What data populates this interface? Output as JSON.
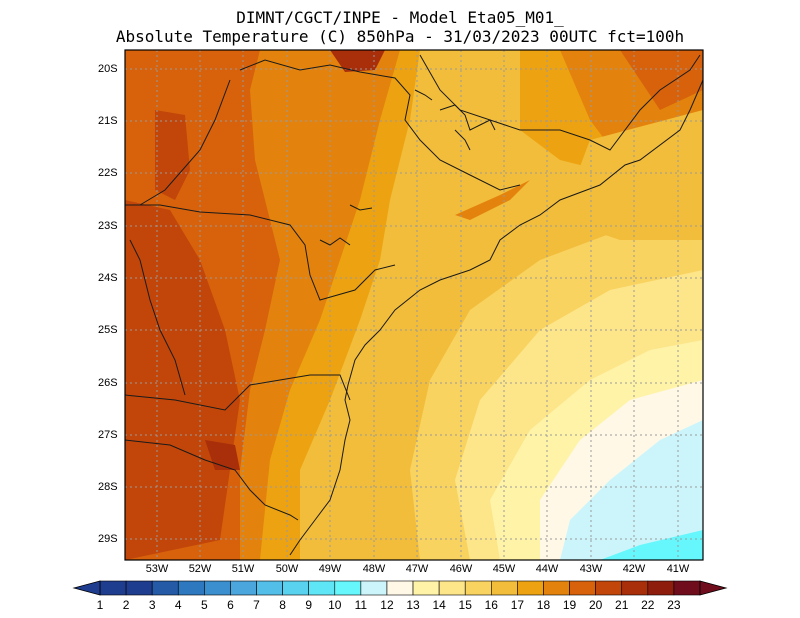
{
  "title": {
    "line1": "DIMNT/CGCT/INPE -  Model Eta05_M01_",
    "line2": "Absolute Temperature (C) 850hPa -  31/03/2023 00UTC fct=100h"
  },
  "map": {
    "latitude_labels": [
      "20S",
      "21S",
      "22S",
      "23S",
      "24S",
      "25S",
      "26S",
      "27S",
      "28S",
      "29S"
    ],
    "longitude_labels": [
      "53W",
      "52W",
      "51W",
      "50W",
      "49W",
      "48W",
      "47W",
      "46W",
      "45W",
      "44W",
      "43W",
      "42W",
      "41W"
    ],
    "extent": {
      "lon_min": -53.9,
      "lon_max": -40.6,
      "lat_min": -29.5,
      "lat_max": -19.8
    }
  },
  "colorbar": {
    "labels": [
      "1",
      "2",
      "3",
      "4",
      "5",
      "6",
      "7",
      "8",
      "9",
      "10",
      "11",
      "12",
      "13",
      "14",
      "15",
      "16",
      "17",
      "18",
      "19",
      "20",
      "21",
      "22",
      "23"
    ],
    "colors": [
      "#1f3d8f",
      "#1f3d8f",
      "#245aa6",
      "#2d78bf",
      "#3c8fcf",
      "#4ba6de",
      "#53bfe8",
      "#58d2ef",
      "#5ee6f6",
      "#66f7fc",
      "#ccf5fb",
      "#fff8e6",
      "#fff3a8",
      "#fde58a",
      "#f9d360",
      "#f2bd3b",
      "#eda311",
      "#e3830d",
      "#d7620b",
      "#c2460a",
      "#a82f0a",
      "#8e1d0d",
      "#6f0d1c",
      "#6f0d1c"
    ]
  }
}
